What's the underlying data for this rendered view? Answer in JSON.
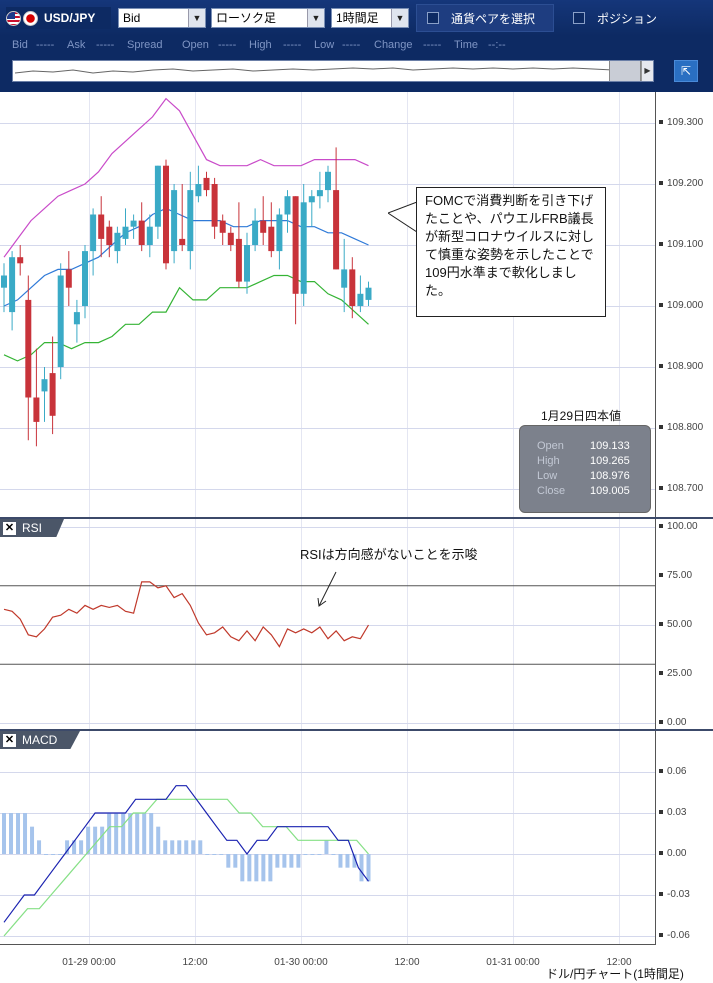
{
  "toolbar": {
    "pair": "USD/JPY",
    "price_type": "Bid",
    "chart_type": "ローソク足",
    "timeframe": "1時間足",
    "pair_select_label": "通貨ペアを選択",
    "position_label": "ポジション"
  },
  "quote_bar": {
    "bid_label": "Bid",
    "bid_value": "-----",
    "ask_label": "Ask",
    "ask_value": "-----",
    "spread_label": "Spread",
    "spread_value": "-----",
    "open_label": "Open",
    "open_value": "-----",
    "high_label": "High",
    "high_value": "-----",
    "low_label": "Low",
    "low_value": "-----",
    "change_label": "Change",
    "change_value": "-----",
    "time_label": "Time",
    "time_value": "--:--"
  },
  "price_axis": [
    "109.300",
    "109.200",
    "109.100",
    "109.000",
    "108.900",
    "108.800",
    "108.700"
  ],
  "rsi_panel": {
    "label": "RSI",
    "axis": [
      "100.00",
      "75.00",
      "50.00",
      "25.00",
      "0.00"
    ],
    "note": "RSIは方向感がないことを示唆"
  },
  "macd_panel": {
    "label": "MACD",
    "axis": [
      "0.06",
      "0.03",
      "0.00",
      "-0.03",
      "-0.06"
    ]
  },
  "annotation": "FOMCで消費判断を引き下げたことや、パウエルFRB議長が新型コロナウイルスに対して慎重な姿勢を示したことで109円水準まで軟化しました。",
  "ohlc": {
    "title": "1月29日四本値",
    "open_label": "Open",
    "open": "109.133",
    "high_label": "High",
    "high": "109.265",
    "low_label": "Low",
    "low": "108.976",
    "close_label": "Close",
    "close": "109.005"
  },
  "x_axis": [
    "01-29 00:00",
    "12:00",
    "01-30 00:00",
    "12:00",
    "01-31 00:00",
    "12:00"
  ],
  "footer": "ドル/円チャート(1時間足)",
  "colors": {
    "up": "#3aaac6",
    "down": "#c8333a",
    "bb_outer": "#c94bc9",
    "bb_middle": "#2f7ad8",
    "bb_inner": "#35b435",
    "rsi": "#c0392b",
    "macd": "#1a22b0",
    "signal": "#86e086",
    "hist": "#a6c4ec"
  },
  "chart_data": {
    "candles": [
      {
        "o": 109.03,
        "h": 109.07,
        "l": 108.99,
        "c": 109.05
      },
      {
        "o": 108.99,
        "h": 109.09,
        "l": 108.96,
        "c": 109.08
      },
      {
        "o": 109.08,
        "h": 109.1,
        "l": 109.05,
        "c": 109.07
      },
      {
        "o": 109.01,
        "h": 109.05,
        "l": 108.78,
        "c": 108.85
      },
      {
        "o": 108.85,
        "h": 108.93,
        "l": 108.77,
        "c": 108.81
      },
      {
        "o": 108.86,
        "h": 108.9,
        "l": 108.81,
        "c": 108.88
      },
      {
        "o": 108.89,
        "h": 108.95,
        "l": 108.79,
        "c": 108.82
      },
      {
        "o": 108.9,
        "h": 109.07,
        "l": 108.88,
        "c": 109.05
      },
      {
        "o": 109.06,
        "h": 109.09,
        "l": 109.0,
        "c": 109.03
      },
      {
        "o": 108.97,
        "h": 109.01,
        "l": 108.94,
        "c": 108.99
      },
      {
        "o": 109.0,
        "h": 109.1,
        "l": 108.98,
        "c": 109.09
      },
      {
        "o": 109.09,
        "h": 109.16,
        "l": 109.05,
        "c": 109.15
      },
      {
        "o": 109.15,
        "h": 109.18,
        "l": 109.08,
        "c": 109.11
      },
      {
        "o": 109.13,
        "h": 109.14,
        "l": 109.08,
        "c": 109.1
      },
      {
        "o": 109.09,
        "h": 109.13,
        "l": 109.07,
        "c": 109.12
      },
      {
        "o": 109.11,
        "h": 109.16,
        "l": 109.1,
        "c": 109.13
      },
      {
        "o": 109.13,
        "h": 109.15,
        "l": 109.11,
        "c": 109.14
      },
      {
        "o": 109.14,
        "h": 109.17,
        "l": 109.09,
        "c": 109.1
      },
      {
        "o": 109.1,
        "h": 109.15,
        "l": 109.08,
        "c": 109.13
      },
      {
        "o": 109.13,
        "h": 109.23,
        "l": 109.11,
        "c": 109.23
      },
      {
        "o": 109.23,
        "h": 109.24,
        "l": 109.06,
        "c": 109.07
      },
      {
        "o": 109.09,
        "h": 109.2,
        "l": 109.07,
        "c": 109.19
      },
      {
        "o": 109.11,
        "h": 109.2,
        "l": 109.09,
        "c": 109.1
      },
      {
        "o": 109.09,
        "h": 109.22,
        "l": 109.06,
        "c": 109.19
      },
      {
        "o": 109.18,
        "h": 109.23,
        "l": 109.17,
        "c": 109.2
      },
      {
        "o": 109.21,
        "h": 109.22,
        "l": 109.18,
        "c": 109.19
      },
      {
        "o": 109.2,
        "h": 109.21,
        "l": 109.11,
        "c": 109.13
      },
      {
        "o": 109.14,
        "h": 109.15,
        "l": 109.1,
        "c": 109.12
      },
      {
        "o": 109.12,
        "h": 109.13,
        "l": 109.09,
        "c": 109.1
      },
      {
        "o": 109.11,
        "h": 109.17,
        "l": 109.03,
        "c": 109.04
      },
      {
        "o": 109.04,
        "h": 109.12,
        "l": 109.02,
        "c": 109.1
      },
      {
        "o": 109.1,
        "h": 109.16,
        "l": 109.09,
        "c": 109.14
      },
      {
        "o": 109.14,
        "h": 109.18,
        "l": 109.1,
        "c": 109.12
      },
      {
        "o": 109.13,
        "h": 109.17,
        "l": 109.08,
        "c": 109.09
      },
      {
        "o": 109.09,
        "h": 109.16,
        "l": 109.06,
        "c": 109.15
      },
      {
        "o": 109.15,
        "h": 109.19,
        "l": 109.12,
        "c": 109.18
      },
      {
        "o": 109.18,
        "h": 109.18,
        "l": 108.97,
        "c": 109.02
      },
      {
        "o": 109.02,
        "h": 109.2,
        "l": 109.0,
        "c": 109.17
      },
      {
        "o": 109.17,
        "h": 109.19,
        "l": 109.13,
        "c": 109.18
      },
      {
        "o": 109.18,
        "h": 109.22,
        "l": 109.16,
        "c": 109.19
      },
      {
        "o": 109.19,
        "h": 109.23,
        "l": 109.17,
        "c": 109.22
      },
      {
        "o": 109.19,
        "h": 109.26,
        "l": 109.06,
        "c": 109.06
      },
      {
        "o": 109.03,
        "h": 109.11,
        "l": 108.99,
        "c": 109.06
      },
      {
        "o": 109.06,
        "h": 109.08,
        "l": 108.98,
        "c": 109.0
      },
      {
        "o": 109.0,
        "h": 109.05,
        "l": 108.99,
        "c": 109.02
      },
      {
        "o": 109.01,
        "h": 109.04,
        "l": 109.0,
        "c": 109.03
      }
    ],
    "bb_upper": [
      109.08,
      109.11,
      109.14,
      109.16,
      109.18,
      109.19,
      109.2,
      109.22,
      109.25,
      109.27,
      109.29,
      109.31,
      109.34,
      109.32,
      109.28,
      109.24,
      109.23,
      109.23,
      109.23,
      109.24,
      109.23,
      109.23,
      109.23,
      109.24,
      109.24,
      109.24,
      109.24,
      109.23
    ],
    "bb_mid": [
      109.0,
      109.01,
      109.03,
      109.05,
      109.06,
      109.06,
      109.07,
      109.08,
      109.1,
      109.12,
      109.13,
      109.15,
      109.16,
      109.15,
      109.14,
      109.14,
      109.14,
      109.13,
      109.13,
      109.14,
      109.14,
      109.14,
      109.13,
      109.13,
      109.12,
      109.12,
      109.11,
      109.1
    ],
    "bb_lower": [
      108.92,
      108.91,
      108.92,
      108.94,
      108.94,
      108.93,
      108.94,
      108.94,
      108.95,
      108.97,
      108.97,
      108.99,
      108.99,
      109.03,
      109.01,
      109.01,
      109.03,
      109.03,
      109.03,
      109.04,
      109.05,
      109.05,
      109.04,
      109.04,
      109.02,
      109.01,
      108.99,
      108.97
    ],
    "rsi": [
      58,
      57,
      53,
      45,
      44,
      48,
      54,
      55,
      58,
      56,
      60,
      58,
      60,
      59,
      60,
      57,
      56,
      72,
      72,
      69,
      70,
      64,
      66,
      60,
      51,
      45,
      46,
      49,
      44,
      42,
      47,
      42,
      49,
      45,
      39,
      48,
      46,
      48,
      46,
      49,
      43,
      47,
      42,
      44,
      43,
      50
    ],
    "macd": [
      -0.05,
      -0.04,
      -0.03,
      -0.03,
      -0.02,
      -0.01,
      0.0,
      0.01,
      0.02,
      0.03,
      0.03,
      0.03,
      0.03,
      0.04,
      0.04,
      0.04,
      0.04,
      0.05,
      0.05,
      0.04,
      0.03,
      0.02,
      0.01,
      0.01,
      0.0,
      0.01,
      0.01,
      0.02,
      0.02,
      0.02,
      0.02,
      0.02,
      0.02,
      0.01,
      0.01,
      -0.01,
      -0.02
    ],
    "signal": [
      -0.06,
      -0.05,
      -0.04,
      -0.04,
      -0.03,
      -0.02,
      -0.01,
      0.0,
      0.01,
      0.02,
      0.02,
      0.03,
      0.03,
      0.04,
      0.04,
      0.04,
      0.04,
      0.04,
      0.04,
      0.04,
      0.03,
      0.03,
      0.02,
      0.02,
      0.02,
      0.01,
      0.01,
      0.01,
      0.01,
      0.01,
      0.01,
      0.0
    ],
    "hist": [
      0.03,
      0.03,
      0.03,
      0.03,
      0.02,
      0.01,
      0.0,
      0.0,
      0.0,
      0.01,
      0.01,
      0.01,
      0.02,
      0.02,
      0.02,
      0.03,
      0.03,
      0.03,
      0.03,
      0.03,
      0.03,
      0.03,
      0.02,
      0.01,
      0.01,
      0.01,
      0.01,
      0.01,
      0.01,
      0.0,
      0.0,
      0.0,
      -0.01,
      -0.01,
      -0.02,
      -0.02,
      -0.02,
      -0.02,
      -0.02,
      -0.01,
      -0.01,
      -0.01,
      -0.01,
      0.0,
      0.0,
      0.0,
      0.01,
      0.0,
      -0.01,
      -0.01,
      -0.01,
      -0.02,
      -0.02
    ]
  }
}
